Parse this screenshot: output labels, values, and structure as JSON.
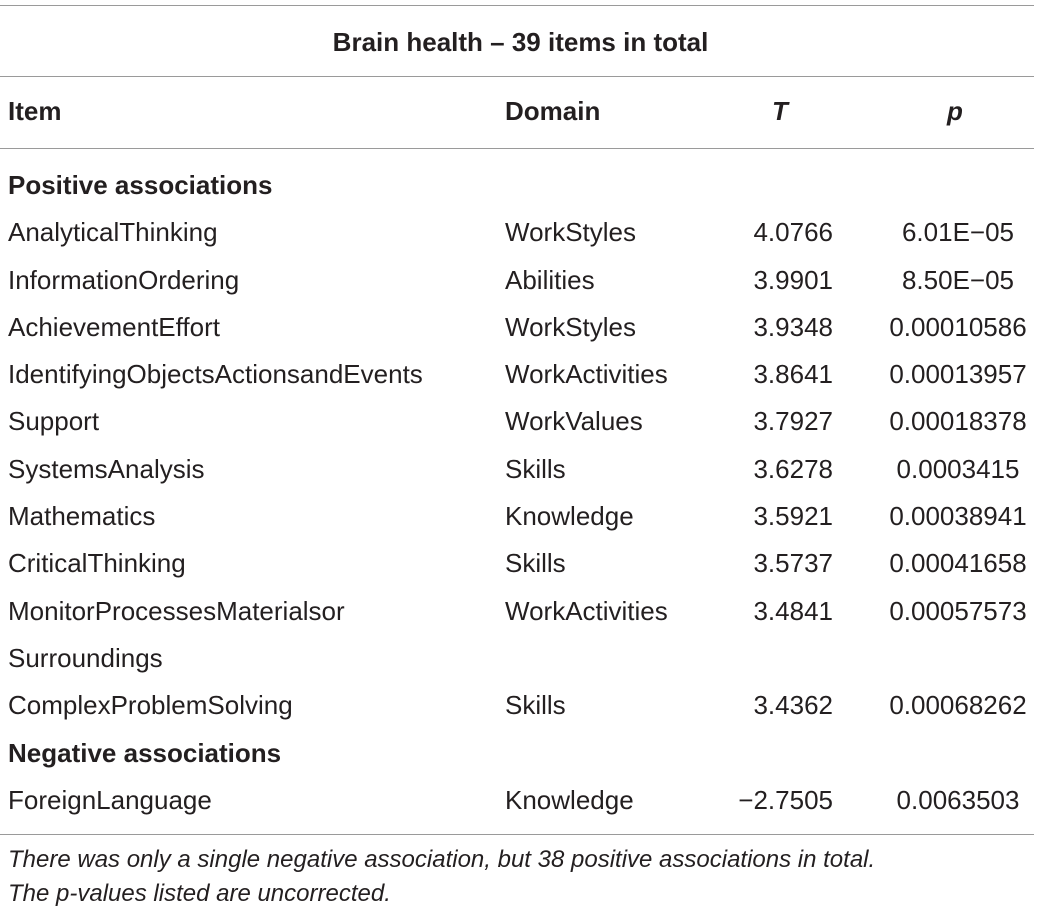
{
  "table": {
    "caption": "Brain health – 39 items in total",
    "headers": {
      "item": "Item",
      "domain": "Domain",
      "t": "T",
      "p": "p"
    },
    "sections": [
      {
        "title": "Positive associations",
        "rows": [
          {
            "item": "AnalyticalThinking",
            "domain": "WorkStyles",
            "t": "4.0766",
            "p": "6.01E−05"
          },
          {
            "item": "InformationOrdering",
            "domain": "Abilities",
            "t": "3.9901",
            "p": "8.50E−05"
          },
          {
            "item": "AchievementEffort",
            "domain": "WorkStyles",
            "t": "3.9348",
            "p": "0.00010586"
          },
          {
            "item": "IdentifyingObjectsActionsandEvents",
            "domain": "WorkActivities",
            "t": "3.8641",
            "p": "0.00013957"
          },
          {
            "item": "Support",
            "domain": "WorkValues",
            "t": "3.7927",
            "p": "0.00018378"
          },
          {
            "item": "SystemsAnalysis",
            "domain": "Skills",
            "t": "3.6278",
            "p": "0.0003415"
          },
          {
            "item": "Mathematics",
            "domain": "Knowledge",
            "t": "3.5921",
            "p": "0.00038941"
          },
          {
            "item": "CriticalThinking",
            "domain": "Skills",
            "t": "3.5737",
            "p": "0.00041658"
          },
          {
            "item": "MonitorProcessesMaterialsor",
            "item_line2": "Surroundings",
            "domain": "WorkActivities",
            "t": "3.4841",
            "p": "0.00057573"
          },
          {
            "item": "ComplexProblemSolving",
            "domain": "Skills",
            "t": "3.4362",
            "p": "0.00068262"
          }
        ]
      },
      {
        "title": "Negative associations",
        "rows": [
          {
            "item": "ForeignLanguage",
            "domain": "Knowledge",
            "t": "−2.7505",
            "p": "0.0063503"
          }
        ]
      }
    ],
    "footnote_line1": "There was only a single negative association, but 38 positive associations in total.",
    "footnote_line2": "The p-values listed are uncorrected."
  }
}
